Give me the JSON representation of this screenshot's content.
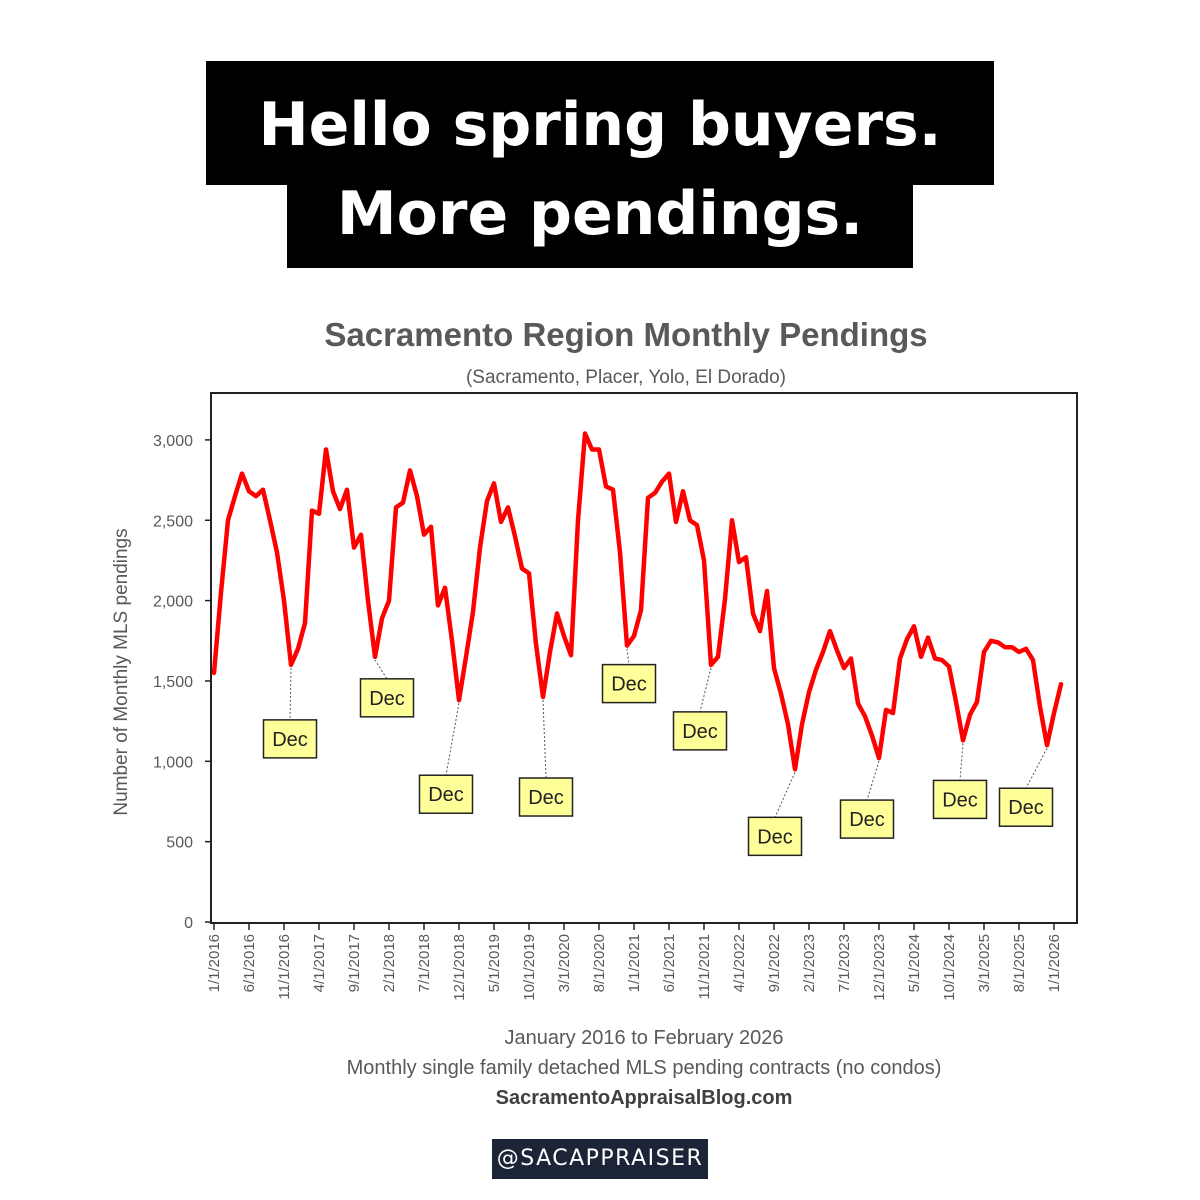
{
  "headline": {
    "line1": "Hello spring buyers.",
    "line2": "More pendings."
  },
  "handle": "@SACAPPRAISER",
  "colors": {
    "line": "#ff0000",
    "callout_fill": "#ffff99",
    "headline_bg": "#000000",
    "handle_bg": "#1c2438"
  },
  "chart_data": {
    "type": "line",
    "title": "Sacramento Region Monthly Pendings",
    "subtitle": "(Sacramento, Placer, Yolo, El Dorado)",
    "ylabel": "Number of Monthly MLS pendings",
    "xlabel": "January 2016 to February 2026",
    "footnote": "Monthly single family detached MLS pending contracts (no condos)",
    "source": "SacramentoAppraisalBlog.com",
    "ylim": [
      0,
      3300
    ],
    "y_ticks": [
      0,
      500,
      1000,
      1500,
      2000,
      2500,
      3000
    ],
    "y_tick_labels": [
      "0",
      "500",
      "1,000",
      "1,500",
      "2,000",
      "2,500",
      "3,000"
    ],
    "x_ticks": [
      "1/1/2016",
      "6/1/2016",
      "11/1/2016",
      "4/1/2017",
      "9/1/2017",
      "2/1/2018",
      "7/1/2018",
      "12/1/2018",
      "5/1/2019",
      "10/1/2019",
      "3/1/2020",
      "8/1/2020",
      "1/1/2021",
      "6/1/2021",
      "11/1/2021",
      "4/1/2022",
      "9/1/2022",
      "2/1/2023",
      "7/1/2023",
      "12/1/2023",
      "5/1/2024",
      "10/1/2024",
      "3/1/2025",
      "8/1/2025",
      "1/1/2026"
    ],
    "grid": false,
    "annotation_text": "Dec",
    "annotations": [
      {
        "date": "12/1/2016",
        "value": 1600,
        "label": "Dec"
      },
      {
        "date": "12/1/2017",
        "value": 1650,
        "label": "Dec"
      },
      {
        "date": "12/1/2018",
        "value": 1380,
        "label": "Dec"
      },
      {
        "date": "12/1/2019",
        "value": 1400,
        "label": "Dec"
      },
      {
        "date": "12/1/2020",
        "value": 1720,
        "label": "Dec"
      },
      {
        "date": "12/1/2021",
        "value": 1600,
        "label": "Dec"
      },
      {
        "date": "12/1/2022",
        "value": 950,
        "label": "Dec"
      },
      {
        "date": "12/1/2023",
        "value": 1020,
        "label": "Dec"
      },
      {
        "date": "12/1/2024",
        "value": 1130,
        "label": "Dec"
      },
      {
        "date": "12/1/2025",
        "value": 1100,
        "label": "Dec"
      }
    ],
    "series": [
      {
        "x": [
          "1/1/2016",
          "2/1/2016",
          "3/1/2016",
          "4/1/2016",
          "5/1/2016",
          "6/1/2016",
          "7/1/2016",
          "8/1/2016",
          "9/1/2016",
          "10/1/2016",
          "11/1/2016",
          "12/1/2016",
          "1/1/2017",
          "2/1/2017",
          "3/1/2017",
          "4/1/2017",
          "5/1/2017",
          "6/1/2017",
          "7/1/2017",
          "8/1/2017",
          "9/1/2017",
          "10/1/2017",
          "11/1/2017",
          "12/1/2017",
          "1/1/2018",
          "2/1/2018",
          "3/1/2018",
          "4/1/2018",
          "5/1/2018",
          "6/1/2018",
          "7/1/2018",
          "8/1/2018",
          "9/1/2018",
          "10/1/2018",
          "11/1/2018",
          "12/1/2018",
          "1/1/2019",
          "2/1/2019",
          "3/1/2019",
          "4/1/2019",
          "5/1/2019",
          "6/1/2019",
          "7/1/2019",
          "8/1/2019",
          "9/1/2019",
          "10/1/2019",
          "11/1/2019",
          "12/1/2019",
          "1/1/2020",
          "2/1/2020",
          "3/1/2020",
          "4/1/2020",
          "5/1/2020",
          "6/1/2020",
          "7/1/2020",
          "8/1/2020",
          "9/1/2020",
          "10/1/2020",
          "11/1/2020",
          "12/1/2020",
          "1/1/2021",
          "2/1/2021",
          "3/1/2021",
          "4/1/2021",
          "5/1/2021",
          "6/1/2021",
          "7/1/2021",
          "8/1/2021",
          "9/1/2021",
          "10/1/2021",
          "11/1/2021",
          "12/1/2021",
          "1/1/2022",
          "2/1/2022",
          "3/1/2022",
          "4/1/2022",
          "5/1/2022",
          "6/1/2022",
          "7/1/2022",
          "8/1/2022",
          "9/1/2022",
          "10/1/2022",
          "11/1/2022",
          "12/1/2022",
          "1/1/2023",
          "2/1/2023",
          "3/1/2023",
          "4/1/2023",
          "5/1/2023",
          "6/1/2023",
          "7/1/2023",
          "8/1/2023",
          "9/1/2023",
          "10/1/2023",
          "11/1/2023",
          "12/1/2023",
          "1/1/2024",
          "2/1/2024",
          "3/1/2024",
          "4/1/2024",
          "5/1/2024",
          "6/1/2024",
          "7/1/2024",
          "8/1/2024",
          "9/1/2024",
          "10/1/2024",
          "11/1/2024",
          "12/1/2024",
          "1/1/2025",
          "2/1/2025",
          "3/1/2025",
          "4/1/2025",
          "5/1/2025",
          "6/1/2025",
          "7/1/2025",
          "8/1/2025",
          "9/1/2025",
          "10/1/2025",
          "11/1/2025",
          "12/1/2025",
          "1/1/2026",
          "2/1/2026"
        ],
        "values": [
          1550,
          2050,
          2500,
          2650,
          2790,
          2680,
          2650,
          2690,
          2500,
          2300,
          2000,
          1600,
          1700,
          1860,
          2560,
          2540,
          2940,
          2680,
          2570,
          2690,
          2330,
          2410,
          2000,
          1650,
          1890,
          2000,
          2580,
          2610,
          2810,
          2650,
          2410,
          2460,
          1970,
          2080,
          1750,
          1380,
          1650,
          1930,
          2330,
          2620,
          2730,
          2490,
          2580,
          2400,
          2200,
          2170,
          1730,
          1400,
          1680,
          1920,
          1780,
          1660,
          2500,
          3040,
          2940,
          2940,
          2710,
          2690,
          2300,
          1720,
          1780,
          1940,
          2640,
          2670,
          2740,
          2790,
          2490,
          2680,
          2500,
          2470,
          2250,
          1600,
          1650,
          2010,
          2500,
          2240,
          2270,
          1920,
          1810,
          2060,
          1580,
          1420,
          1230,
          950,
          1230,
          1430,
          1570,
          1680,
          1810,
          1690,
          1580,
          1640,
          1360,
          1280,
          1160,
          1020,
          1320,
          1300,
          1640,
          1760,
          1840,
          1650,
          1770,
          1640,
          1630,
          1590,
          1370,
          1130,
          1290,
          1370,
          1680,
          1750,
          1740,
          1710,
          1710,
          1680,
          1700,
          1630,
          1340,
          1100,
          1300,
          1480
        ]
      }
    ]
  }
}
